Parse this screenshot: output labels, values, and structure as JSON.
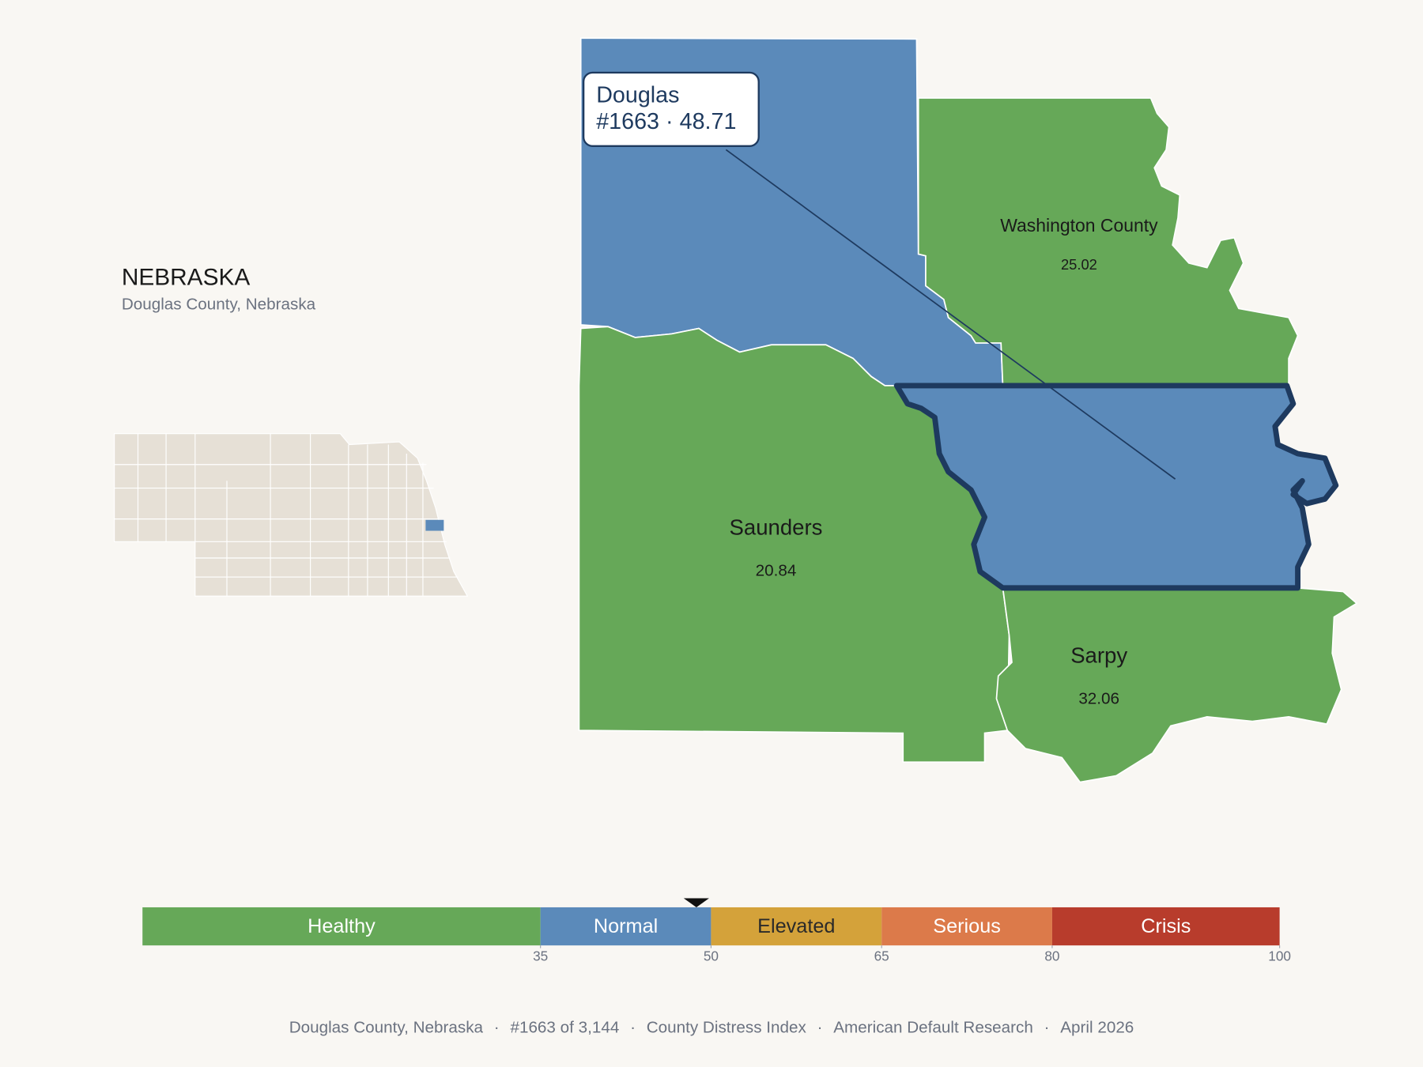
{
  "inset": {
    "title": "NEBRASKA",
    "subtitle": "Douglas County, Nebraska"
  },
  "callout": {
    "name": "Douglas",
    "rank": "#1663",
    "separator": "·",
    "value": 48.71
  },
  "counties": [
    {
      "name": "Washington County",
      "value": 25.02
    },
    {
      "name": "Saunders",
      "value": 20.84
    },
    {
      "name": "Sarpy",
      "value": 32.06
    }
  ],
  "scale": {
    "labels": [
      "Healthy",
      "Normal",
      "Elevated",
      "Serious",
      "Crisis"
    ],
    "colors": [
      "#66a858",
      "#5b8aba",
      "#d4a23a",
      "#dc7a4a",
      "#b83c2c"
    ],
    "xlim": [
      0,
      100
    ],
    "ticks": [
      35,
      50,
      65,
      80,
      100
    ]
  },
  "footer": {
    "items": [
      "Douglas County, Nebraska",
      "#1663 of 3,144",
      "County Distress Index",
      "American Default Research",
      "April 2026"
    ],
    "separator": "·"
  }
}
